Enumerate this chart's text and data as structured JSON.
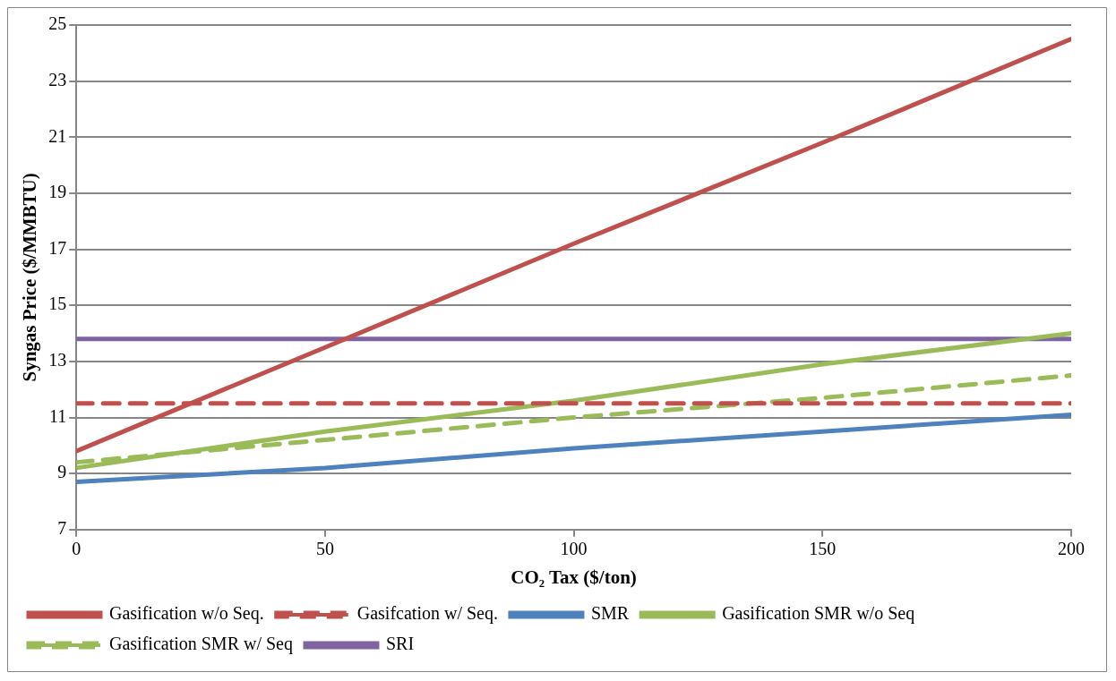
{
  "chart_data": {
    "type": "line",
    "xlabel": "CO₂ Tax ($/ton)",
    "ylabel": "Syngas Price ($/MMBTU)",
    "x": [
      0,
      50,
      100,
      150,
      200
    ],
    "xlim": [
      0,
      200
    ],
    "xticks": [
      0,
      50,
      100,
      150,
      200
    ],
    "ylim": [
      7,
      25
    ],
    "yticks": [
      7,
      9,
      11,
      13,
      15,
      17,
      19,
      21,
      23,
      25
    ],
    "grid": "y",
    "legend": "bottom",
    "marker": "none",
    "series": [
      {
        "name": "Gasification w/o Seq.",
        "color": "#c0504d",
        "line_style": "solid",
        "values": [
          9.8,
          13.5,
          17.2,
          20.8,
          24.5
        ]
      },
      {
        "name": "Gasifcation w/ Seq.",
        "color": "#c0504d",
        "line_style": "dashed",
        "values": [
          11.5,
          11.5,
          11.5,
          11.5,
          11.5
        ]
      },
      {
        "name": "SMR",
        "color": "#4f81bd",
        "line_style": "solid",
        "values": [
          8.7,
          9.2,
          9.9,
          10.5,
          11.1
        ]
      },
      {
        "name": "Gasification SMR w/o Seq",
        "color": "#9bbb59",
        "line_style": "solid",
        "values": [
          9.2,
          10.5,
          11.6,
          12.9,
          14.0
        ]
      },
      {
        "name": "Gasification SMR w/ Seq",
        "color": "#9bbb59",
        "line_style": "dashed",
        "values": [
          9.4,
          10.2,
          11.0,
          11.7,
          12.5
        ]
      },
      {
        "name": "SRI",
        "color": "#8064a2",
        "line_style": "solid",
        "values": [
          13.8,
          13.8,
          13.8,
          13.8,
          13.8
        ]
      }
    ]
  }
}
